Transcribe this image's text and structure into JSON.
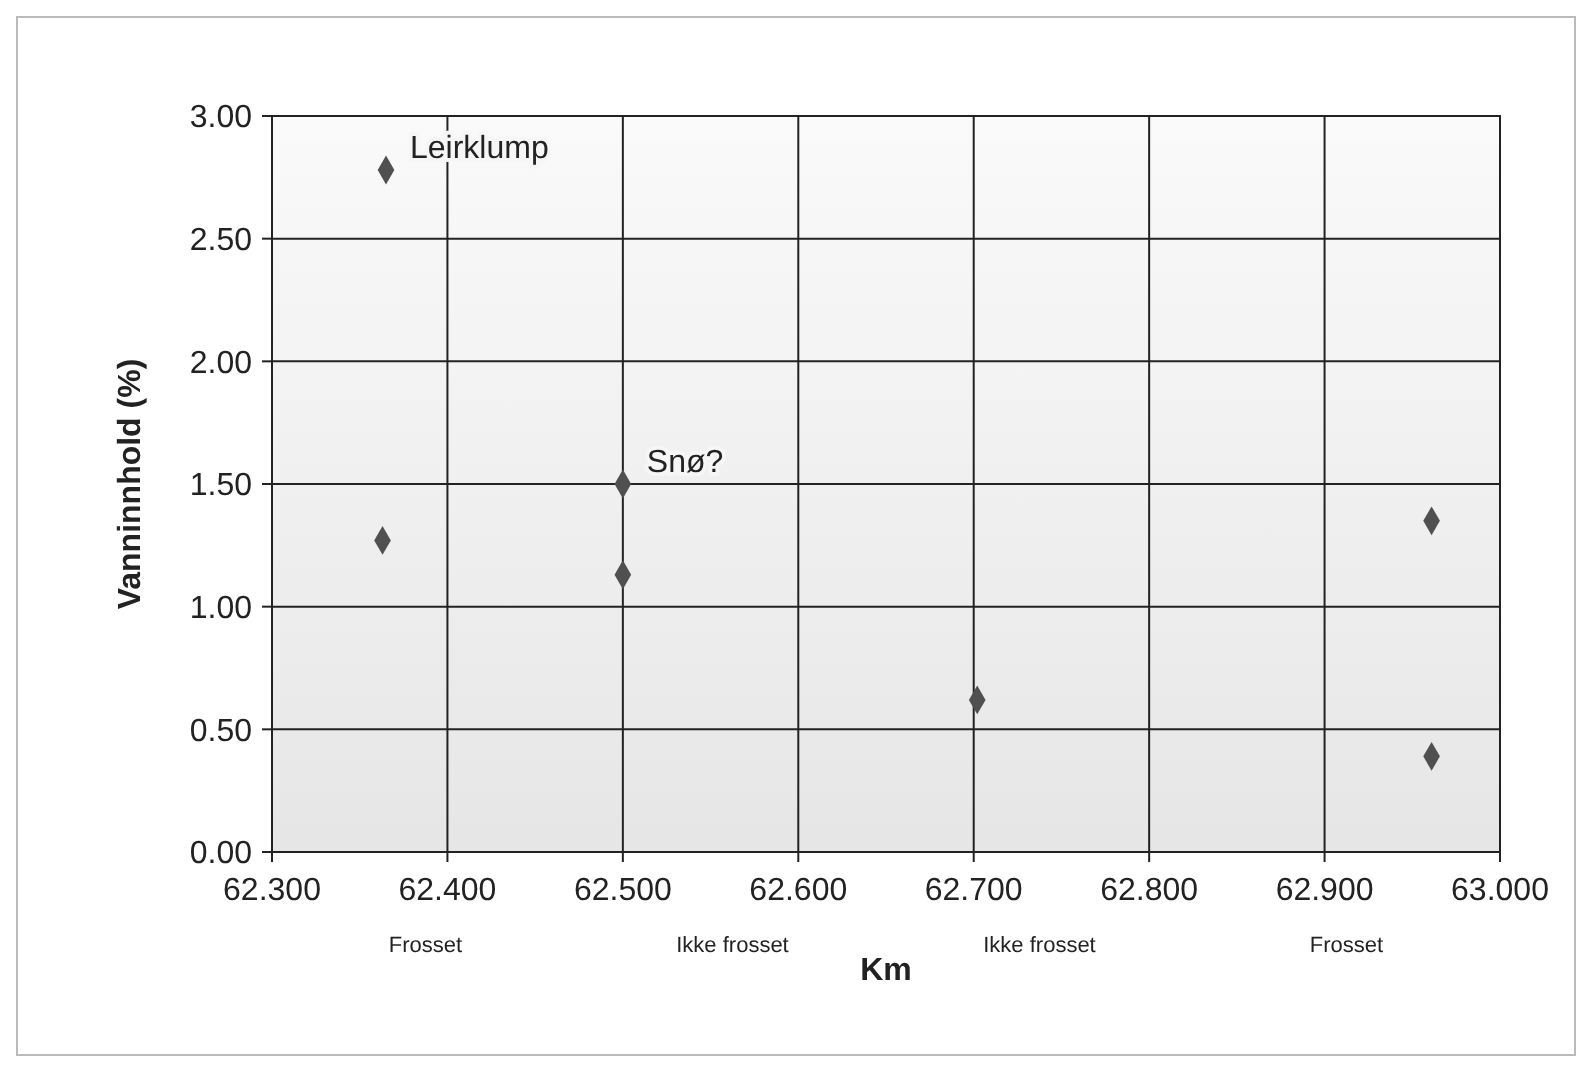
{
  "chart_data": {
    "type": "scatter",
    "xlabel": "Km",
    "ylabel": "Vanninnhold (%)",
    "x": [
      62.365,
      62.363,
      62.5,
      62.5,
      62.702,
      62.961,
      62.961
    ],
    "series": [
      {
        "color": "#505050",
        "values": [
          2.78,
          1.27,
          1.5,
          1.13,
          0.62,
          1.35,
          0.39
        ]
      }
    ],
    "xlim": [
      62.3,
      63.0
    ],
    "xticks": [
      {
        "value": 62.3,
        "label": "62.300"
      },
      {
        "value": 62.4,
        "label": "62.400"
      },
      {
        "value": 62.5,
        "label": "62.500"
      },
      {
        "value": 62.6,
        "label": "62.600"
      },
      {
        "value": 62.7,
        "label": "62.700"
      },
      {
        "value": 62.8,
        "label": "62.800"
      },
      {
        "value": 62.9,
        "label": "62.900"
      },
      {
        "value": 63.0,
        "label": "63.000"
      }
    ],
    "ylim": [
      0,
      3
    ],
    "yticks": [
      {
        "value": 0,
        "label": "0.00"
      },
      {
        "value": 0.5,
        "label": "0.50"
      },
      {
        "value": 1,
        "label": "1.00"
      },
      {
        "value": 1.5,
        "label": "1.50"
      },
      {
        "value": 2,
        "label": "2.00"
      },
      {
        "value": 2.5,
        "label": "2.50"
      },
      {
        "value": 3,
        "label": "3.00"
      }
    ],
    "grid": true,
    "marker": "diamond",
    "annotations": [
      {
        "text": "Leirklump",
        "x": 62.365,
        "y": 2.78
      },
      {
        "text": "Snø?",
        "x": 62.5,
        "y": 1.5
      },
      "Frosset",
      "Ikke frosset",
      "Ikke frosset",
      "Frosset"
    ]
  }
}
